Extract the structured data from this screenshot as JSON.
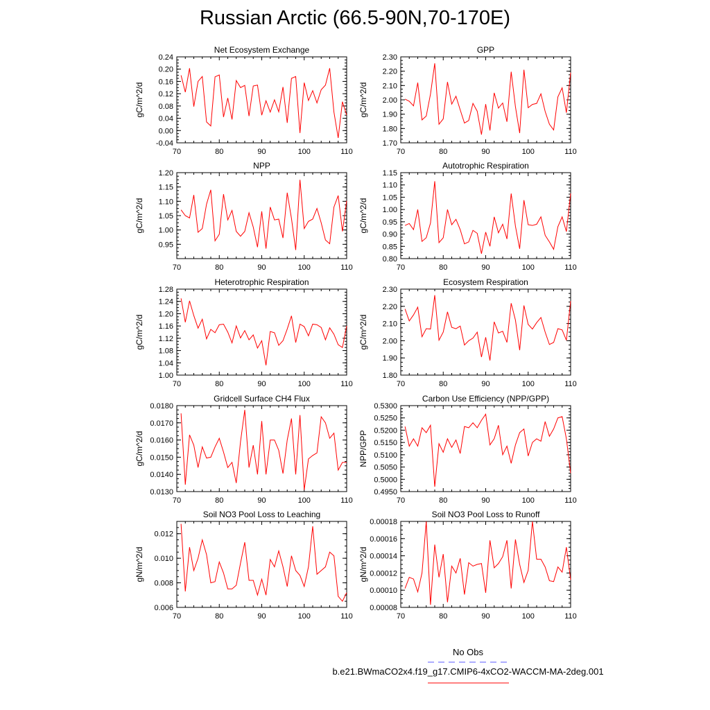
{
  "page": {
    "title": "Russian Arctic (66.5-90N,70-170E)"
  },
  "legend": {
    "obs_label": "No Obs",
    "obs_color": "#5a5aff",
    "case_label": "b.e21.BWmaCO2x4.f19_g17.CMIP6-4xCO2-WACCM-MA-2deg.001",
    "case_color": "#ff0000"
  },
  "chart_data": [
    {
      "type": "line",
      "title": "Net Ecosystem Exchange",
      "ylabel": "gC/m^2/d",
      "xlim": [
        70,
        110
      ],
      "xticks": [
        "70",
        "80",
        "90",
        "100",
        "110"
      ],
      "ylim": [
        -0.04,
        0.24
      ],
      "yticks": [
        "-0.04",
        "0.00",
        "0.04",
        "0.08",
        "0.12",
        "0.16",
        "0.20",
        "0.24"
      ],
      "ytick_values": [
        -0.04,
        0.0,
        0.04,
        0.08,
        0.12,
        0.16,
        0.2,
        0.24
      ],
      "x_start": 71,
      "series": [
        {
          "name": "b.e21.BWmaCO2x4.f19_g17.CMIP6-4xCO2-WACCM-MA-2deg.001",
          "color": "#ff0000",
          "values": [
            0.18,
            0.125,
            0.203,
            0.078,
            0.16,
            0.176,
            0.028,
            0.015,
            0.175,
            0.181,
            0.044,
            0.106,
            0.036,
            0.163,
            0.14,
            0.147,
            0.047,
            0.145,
            0.148,
            0.05,
            0.097,
            0.06,
            0.1,
            0.061,
            0.142,
            0.025,
            0.17,
            0.176,
            -0.008,
            0.156,
            0.098,
            0.13,
            0.09,
            0.133,
            0.148,
            0.203,
            0.06,
            -0.024,
            0.094,
            0.05
          ]
        }
      ]
    },
    {
      "type": "line",
      "title": "GPP",
      "ylabel": "gC/m^2/d",
      "xlim": [
        70,
        110
      ],
      "xticks": [
        "70",
        "80",
        "90",
        "100",
        "110"
      ],
      "ylim": [
        1.7,
        2.3
      ],
      "yticks": [
        "1.70",
        "1.80",
        "1.90",
        "2.00",
        "2.10",
        "2.20",
        "2.30"
      ],
      "ytick_values": [
        1.7,
        1.8,
        1.9,
        2.0,
        2.1,
        2.2,
        2.3
      ],
      "x_start": 71,
      "series": [
        {
          "name": "b.e21.BWmaCO2x4.f19_g17.CMIP6-4xCO2-WACCM-MA-2deg.001",
          "color": "#ff0000",
          "values": [
            2.005,
            1.99,
            1.958,
            2.12,
            1.86,
            1.887,
            2.04,
            2.255,
            1.83,
            1.867,
            2.125,
            1.97,
            2.025,
            1.93,
            1.838,
            1.856,
            1.975,
            1.921,
            1.757,
            1.97,
            1.786,
            2.049,
            1.942,
            1.978,
            1.847,
            2.196,
            1.952,
            1.768,
            2.21,
            1.945,
            1.968,
            1.975,
            2.042,
            1.919,
            1.83,
            1.79,
            2.021,
            2.084,
            1.91,
            2.19
          ]
        }
      ]
    },
    {
      "type": "line",
      "title": "NPP",
      "ylabel": "gC/m^2/d",
      "xlim": [
        70,
        110
      ],
      "xticks": [
        "70",
        "80",
        "90",
        "100",
        "110"
      ],
      "ylim": [
        0.9,
        1.2
      ],
      "yticks": [
        "0.95",
        "1.00",
        "1.05",
        "1.10",
        "1.15",
        "1.20"
      ],
      "ytick_values": [
        0.95,
        1.0,
        1.05,
        1.1,
        1.15,
        1.2
      ],
      "x_start": 71,
      "series": [
        {
          "name": "b.e21.BWmaCO2x4.f19_g17.CMIP6-4xCO2-WACCM-MA-2deg.001",
          "color": "#ff0000",
          "values": [
            1.07,
            1.05,
            1.042,
            1.122,
            0.992,
            1.005,
            1.09,
            1.14,
            0.962,
            0.985,
            1.125,
            1.035,
            1.068,
            0.995,
            0.978,
            0.995,
            1.06,
            1.01,
            0.94,
            1.065,
            0.935,
            1.08,
            1.035,
            1.038,
            0.972,
            1.13,
            1.04,
            0.93,
            1.175,
            1.005,
            1.03,
            1.038,
            1.075,
            1.025,
            0.965,
            0.952,
            1.08,
            1.12,
            0.995,
            1.102
          ]
        }
      ]
    },
    {
      "type": "line",
      "title": "Autotrophic Respiration",
      "ylabel": "gC/m^2/d",
      "xlim": [
        70,
        110
      ],
      "xticks": [
        "70",
        "80",
        "90",
        "100",
        "110"
      ],
      "ylim": [
        0.8,
        1.15
      ],
      "yticks": [
        "0.80",
        "0.85",
        "0.90",
        "0.95",
        "1.00",
        "1.05",
        "1.10",
        "1.15"
      ],
      "ytick_values": [
        0.8,
        0.85,
        0.9,
        0.95,
        1.0,
        1.05,
        1.1,
        1.15
      ],
      "x_start": 71,
      "series": [
        {
          "name": "b.e21.BWmaCO2x4.f19_g17.CMIP6-4xCO2-WACCM-MA-2deg.001",
          "color": "#ff0000",
          "values": [
            0.935,
            0.943,
            0.918,
            1.0,
            0.87,
            0.885,
            0.945,
            1.115,
            0.865,
            0.885,
            1.0,
            0.938,
            0.96,
            0.918,
            0.86,
            0.868,
            0.915,
            0.903,
            0.82,
            0.908,
            0.85,
            0.97,
            0.905,
            0.94,
            0.88,
            1.065,
            0.932,
            0.84,
            1.038,
            0.938,
            0.935,
            0.94,
            0.97,
            0.895,
            0.868,
            0.838,
            0.93,
            0.97,
            0.91,
            1.065
          ]
        }
      ]
    },
    {
      "type": "line",
      "title": "Heterotrophic Respiration",
      "ylabel": "gC/m^2/d",
      "xlim": [
        70,
        110
      ],
      "xticks": [
        "70",
        "80",
        "90",
        "100",
        "110"
      ],
      "ylim": [
        1.0,
        1.28
      ],
      "yticks": [
        "1.00",
        "1.04",
        "1.08",
        "1.12",
        "1.16",
        "1.20",
        "1.24",
        "1.28"
      ],
      "ytick_values": [
        1.0,
        1.04,
        1.08,
        1.12,
        1.16,
        1.2,
        1.24,
        1.28
      ],
      "x_start": 71,
      "series": [
        {
          "name": "b.e21.BWmaCO2x4.f19_g17.CMIP6-4xCO2-WACCM-MA-2deg.001",
          "color": "#ff0000",
          "values": [
            1.25,
            1.172,
            1.242,
            1.194,
            1.153,
            1.182,
            1.118,
            1.149,
            1.138,
            1.164,
            1.166,
            1.14,
            1.105,
            1.16,
            1.121,
            1.145,
            1.115,
            1.131,
            1.088,
            1.112,
            1.032,
            1.142,
            1.138,
            1.097,
            1.112,
            1.15,
            1.193,
            1.106,
            1.166,
            1.158,
            1.128,
            1.166,
            1.164,
            1.155,
            1.115,
            1.154,
            1.133,
            1.099,
            1.09,
            1.16
          ]
        }
      ]
    },
    {
      "type": "line",
      "title": "Ecosystem Respiration",
      "ylabel": "gC/m^2/d",
      "xlim": [
        70,
        110
      ],
      "xticks": [
        "70",
        "80",
        "90",
        "100",
        "110"
      ],
      "ylim": [
        1.8,
        2.3
      ],
      "yticks": [
        "1.80",
        "1.90",
        "2.00",
        "2.10",
        "2.20",
        "2.30"
      ],
      "ytick_values": [
        1.8,
        1.9,
        2.0,
        2.1,
        2.2,
        2.3
      ],
      "x_start": 71,
      "series": [
        {
          "name": "b.e21.BWmaCO2x4.f19_g17.CMIP6-4xCO2-WACCM-MA-2deg.001",
          "color": "#ff0000",
          "values": [
            2.185,
            2.115,
            2.15,
            2.195,
            2.023,
            2.07,
            2.068,
            2.265,
            2.003,
            2.05,
            2.168,
            2.078,
            2.07,
            2.085,
            1.975,
            2.0,
            2.015,
            2.05,
            1.905,
            2.02,
            1.885,
            2.11,
            2.045,
            2.055,
            1.99,
            2.218,
            2.12,
            1.945,
            2.205,
            2.095,
            2.068,
            2.105,
            2.135,
            2.05,
            1.978,
            1.99,
            2.07,
            2.063,
            2.003,
            2.23
          ]
        }
      ]
    },
    {
      "type": "line",
      "title": "Gridcell Surface CH4 Flux",
      "ylabel": "gC/m^2/d",
      "xlim": [
        70,
        110
      ],
      "xticks": [
        "70",
        "80",
        "90",
        "100",
        "110"
      ],
      "ylim": [
        0.013,
        0.018
      ],
      "yticks": [
        "0.0130",
        "0.0140",
        "0.0150",
        "0.0160",
        "0.0170",
        "0.0180"
      ],
      "ytick_values": [
        0.013,
        0.014,
        0.015,
        0.016,
        0.017,
        0.018
      ],
      "x_start": 71,
      "series": [
        {
          "name": "b.e21.BWmaCO2x4.f19_g17.CMIP6-4xCO2-WACCM-MA-2deg.001",
          "color": "#ff0000",
          "values": [
            0.01755,
            0.0134,
            0.0163,
            0.0157,
            0.0144,
            0.0156,
            0.01495,
            0.015,
            0.0156,
            0.0161,
            0.0153,
            0.0144,
            0.0147,
            0.0135,
            0.0159,
            0.01775,
            0.0144,
            0.0157,
            0.014,
            0.0171,
            0.014,
            0.016,
            0.016,
            0.0154,
            0.01405,
            0.016,
            0.01725,
            0.014,
            0.01745,
            0.0131,
            0.0149,
            0.0151,
            0.01525,
            0.01735,
            0.017,
            0.0161,
            0.0164,
            0.01425,
            0.0147,
            0.0147
          ]
        }
      ]
    },
    {
      "type": "line",
      "title": "Carbon Use Efficiency (NPP/GPP)",
      "ylabel": "NPP/GPP",
      "xlim": [
        70,
        110
      ],
      "xticks": [
        "70",
        "80",
        "90",
        "100",
        "110"
      ],
      "ylim": [
        0.495,
        0.53
      ],
      "yticks": [
        "0.4950",
        "0.5000",
        "0.5050",
        "0.5100",
        "0.5150",
        "0.5200",
        "0.5250",
        "0.5300"
      ],
      "ytick_values": [
        0.495,
        0.5,
        0.505,
        0.51,
        0.515,
        0.52,
        0.525,
        0.53
      ],
      "x_start": 71,
      "series": [
        {
          "name": "b.e21.BWmaCO2x4.f19_g17.CMIP6-4xCO2-WACCM-MA-2deg.001",
          "color": "#ff0000",
          "values": [
            0.5215,
            0.5135,
            0.5165,
            0.5135,
            0.521,
            0.519,
            0.522,
            0.497,
            0.5145,
            0.511,
            0.5165,
            0.513,
            0.516,
            0.5105,
            0.5215,
            0.521,
            0.523,
            0.521,
            0.524,
            0.5265,
            0.514,
            0.5165,
            0.522,
            0.51,
            0.5135,
            0.5065,
            0.514,
            0.519,
            0.5205,
            0.5095,
            0.515,
            0.5165,
            0.5155,
            0.5235,
            0.5175,
            0.5205,
            0.525,
            0.5255,
            0.5165,
            0.5025
          ]
        }
      ]
    },
    {
      "type": "line",
      "title": "Soil NO3 Pool Loss to Leaching",
      "ylabel": "gN/m^2/d",
      "xlim": [
        70,
        110
      ],
      "xticks": [
        "70",
        "80",
        "90",
        "100",
        "110"
      ],
      "ylim": [
        0.006,
        0.013
      ],
      "yticks": [
        "0.006",
        "0.008",
        "0.010",
        "0.012"
      ],
      "ytick_values": [
        0.006,
        0.008,
        0.01,
        0.012
      ],
      "x_start": 71,
      "series": [
        {
          "name": "b.e21.BWmaCO2x4.f19_g17.CMIP6-4xCO2-WACCM-MA-2deg.001",
          "color": "#ff0000",
          "values": [
            0.0128,
            0.0073,
            0.0109,
            0.009,
            0.01,
            0.0115,
            0.0103,
            0.008,
            0.0081,
            0.0097,
            0.0088,
            0.0075,
            0.0075,
            0.0078,
            0.0096,
            0.0113,
            0.0082,
            0.0082,
            0.007,
            0.0083,
            0.007,
            0.0099,
            0.0093,
            0.0106,
            0.0093,
            0.0077,
            0.0102,
            0.009,
            0.0086,
            0.0077,
            0.0093,
            0.0126,
            0.0087,
            0.009,
            0.0093,
            0.0105,
            0.0102,
            0.0069,
            0.0065,
            0.0072
          ]
        }
      ]
    },
    {
      "type": "line",
      "title": "Soil NO3 Pool Loss to Runoff",
      "ylabel": "gN/m^2/d",
      "xlim": [
        70,
        110
      ],
      "xticks": [
        "70",
        "80",
        "90",
        "100",
        "110"
      ],
      "ylim": [
        8e-05,
        0.00018
      ],
      "yticks": [
        "0.00008",
        "0.00010",
        "0.00012",
        "0.00014",
        "0.00016",
        "0.00018"
      ],
      "ytick_values": [
        8e-05,
        0.0001,
        0.00012,
        0.00014,
        0.00016,
        0.00018
      ],
      "x_start": 71,
      "series": [
        {
          "name": "b.e21.BWmaCO2x4.f19_g17.CMIP6-4xCO2-WACCM-MA-2deg.001",
          "color": "#ff0000",
          "values": [
            0.000102,
            0.000115,
            0.000113,
            9.8e-05,
            0.00012,
            0.00018,
            8.3e-05,
            0.000153,
            0.000115,
            0.000142,
            8.6e-05,
            0.000128,
            0.00012,
            0.000137,
            9.5e-05,
            0.000132,
            0.000128,
            0.00013,
            0.000131,
            9.7e-05,
            0.000158,
            0.000126,
            0.000131,
            0.000139,
            0.000158,
            0.000102,
            0.000159,
            0.00013,
            0.000109,
            0.000123,
            0.00018,
            0.000136,
            0.000136,
            0.000127,
            0.000111,
            0.00011,
            0.000127,
            0.000121,
            0.00015,
            0.000112
          ]
        }
      ]
    }
  ]
}
